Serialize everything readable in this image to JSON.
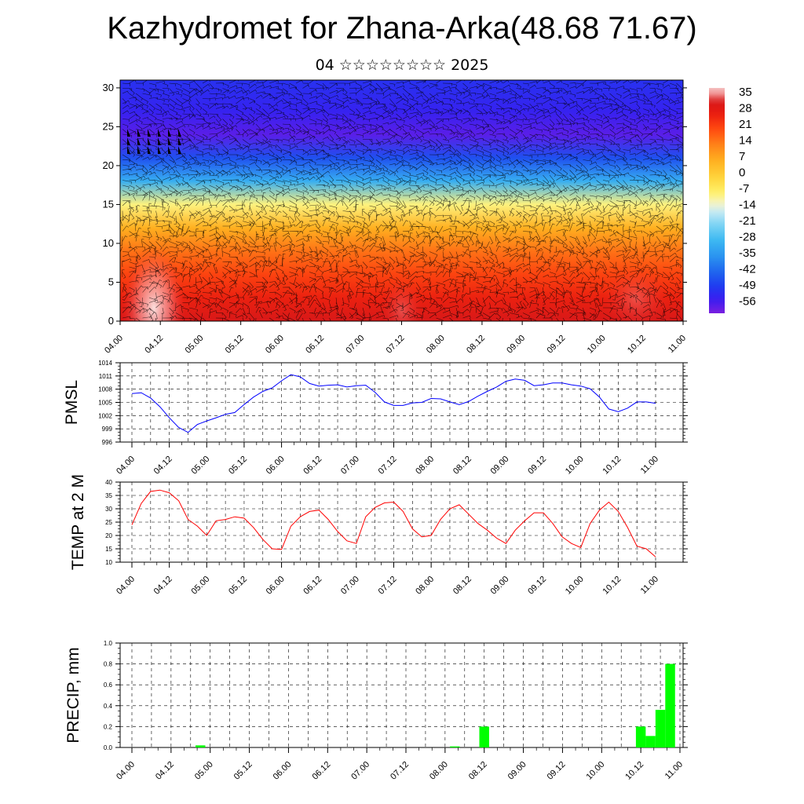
{
  "title": "Kazhydromet for Zhana-Arka(48.68 71.67)",
  "subtitle": "04 ☆☆☆☆☆☆☆☆ 2025",
  "time_labels": [
    "04.00",
    "04.12",
    "05.00",
    "05.12",
    "06.00",
    "06.12",
    "07.00",
    "07.12",
    "08.00",
    "08.12",
    "09.00",
    "09.12",
    "10.00",
    "10.12",
    "11.00"
  ],
  "chart_data": [
    {
      "type": "heatmap",
      "name": "",
      "y_ticks": [
        0,
        5,
        10,
        15,
        20,
        25,
        30
      ],
      "ylim": [
        0,
        31
      ],
      "colorbar": {
        "labels": [
          "35",
          "28",
          "21",
          "14",
          "7",
          "0",
          "-7",
          "-14",
          "-21",
          "-28",
          "-35",
          "-42",
          "-49",
          "-56"
        ],
        "range": [
          -60,
          39
        ]
      },
      "description_of_field": "",
      "temperature_profile_bands": [
        {
          "height": 0,
          "value": 33
        },
        {
          "height": 3,
          "value": 27
        },
        {
          "height": 6,
          "value": 22
        },
        {
          "height": 9,
          "value": 16
        },
        {
          "height": 12,
          "value": 7
        },
        {
          "height": 15,
          "value": -8
        },
        {
          "height": 18,
          "value": -30
        },
        {
          "height": 21,
          "value": -45
        },
        {
          "height": 24,
          "value": -57
        },
        {
          "height": 27,
          "value": -53
        },
        {
          "height": 31,
          "value": -50
        }
      ]
    },
    {
      "type": "line",
      "ylabel": "PMSL",
      "ylim": [
        996,
        1014
      ],
      "y_ticks": [
        996,
        999,
        1002,
        1005,
        1008,
        1011,
        1014
      ],
      "color": "#0000ff",
      "x": [
        0,
        3,
        6,
        9,
        12,
        15,
        18,
        21,
        24,
        27,
        30,
        33,
        36,
        39,
        42,
        45,
        48,
        51,
        54,
        57,
        60,
        63,
        66,
        69,
        72,
        75,
        78,
        81,
        84,
        87,
        90,
        93,
        96,
        99,
        102,
        105,
        108,
        111,
        114,
        117,
        120,
        123,
        126,
        129,
        132,
        135,
        138,
        141,
        144,
        147,
        150,
        153,
        156,
        159,
        162,
        165,
        168
      ],
      "values": [
        1007,
        1007.2,
        1006,
        1004,
        1001.5,
        999.3,
        998.2,
        1000,
        1000.8,
        1001.5,
        1002.3,
        1002.7,
        1004.5,
        1006.2,
        1007.5,
        1008.3,
        1009.9,
        1011.3,
        1010.8,
        1009.3,
        1008.7,
        1008.9,
        1009,
        1008.5,
        1008.8,
        1008.9,
        1007.3,
        1005.1,
        1004.3,
        1004.3,
        1004.9,
        1005,
        1005.9,
        1005.8,
        1005.1,
        1004.5,
        1005.2,
        1006.4,
        1007.5,
        1008.5,
        1009.8,
        1010.3,
        1010,
        1008.8,
        1009,
        1009.4,
        1009.4,
        1009,
        1008.7,
        1008.1,
        1006.2,
        1003.5,
        1002.9,
        1003.7,
        1005.1,
        1005.1,
        1004.8
      ]
    },
    {
      "type": "line",
      "ylabel": "TEMP at 2 M",
      "ylim": [
        10,
        40
      ],
      "y_ticks": [
        10,
        15,
        20,
        25,
        30,
        35,
        40
      ],
      "color": "#ff0000",
      "x": [
        0,
        3,
        6,
        9,
        12,
        15,
        18,
        21,
        24,
        27,
        30,
        33,
        36,
        39,
        42,
        45,
        48,
        51,
        54,
        57,
        60,
        63,
        66,
        69,
        72,
        75,
        78,
        81,
        84,
        87,
        90,
        93,
        96,
        99,
        102,
        105,
        108,
        111,
        114,
        117,
        120,
        123,
        126,
        129,
        132,
        135,
        138,
        141,
        144,
        147,
        150,
        153,
        156,
        159,
        162,
        165,
        168
      ],
      "values": [
        24,
        32,
        36.5,
        37,
        36,
        33,
        26,
        23.5,
        20,
        25.5,
        26,
        27,
        26.5,
        23,
        18.5,
        15,
        14.8,
        23.5,
        27,
        29,
        29.5,
        26,
        21.5,
        18,
        17,
        27,
        30.5,
        32.2,
        32.5,
        29,
        22.5,
        19.5,
        20,
        26,
        30,
        31.5,
        28,
        24.5,
        22,
        19,
        17,
        22,
        25.5,
        28.5,
        28.5,
        24.5,
        19.5,
        17,
        15.5,
        24.5,
        29.5,
        32.5,
        29,
        23,
        16,
        15,
        12
      ]
    },
    {
      "type": "bar",
      "ylabel": "PRECIP, mm",
      "ylim": [
        0,
        1.0
      ],
      "y_ticks": [
        "0.0",
        "0.2",
        "0.4",
        "0.6",
        "0.8",
        "1.0"
      ],
      "color": "#00ff00",
      "bars": [
        {
          "x": 21,
          "value": 0.02
        },
        {
          "x": 99,
          "value": 0.01
        },
        {
          "x": 108,
          "value": 0.2
        },
        {
          "x": 156,
          "value": 0.2
        },
        {
          "x": 159,
          "value": 0.11
        },
        {
          "x": 162,
          "value": 0.36
        },
        {
          "x": 165,
          "value": 0.8
        }
      ]
    }
  ]
}
